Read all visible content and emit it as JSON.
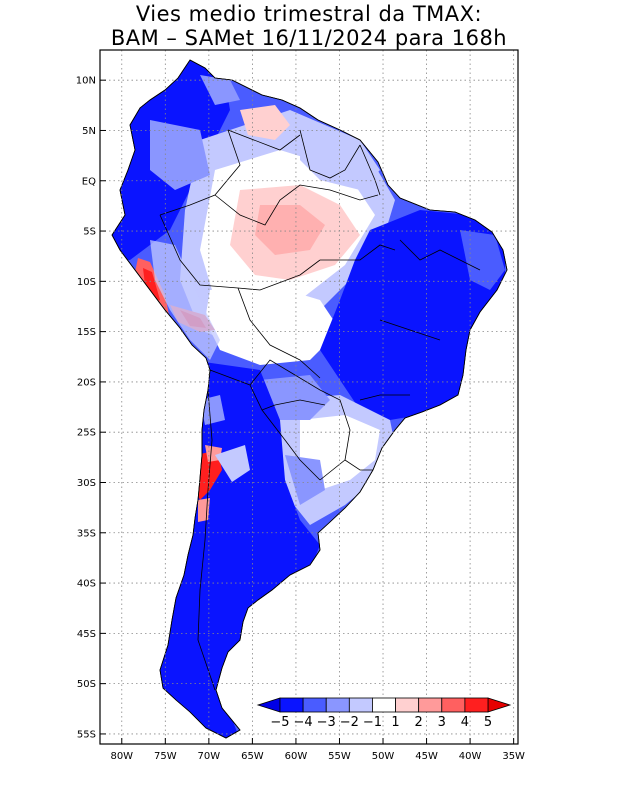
{
  "title": {
    "line1": "Vies medio trimestral da TMAX:",
    "line2": "BAM – SAMet 16/11/2024  para 168h"
  },
  "axes": {
    "lat_labels": [
      "10N",
      "5N",
      "EQ",
      "5S",
      "10S",
      "15S",
      "20S",
      "25S",
      "30S",
      "35S",
      "40S",
      "45S",
      "50S",
      "55S"
    ],
    "lon_labels": [
      "80W",
      "75W",
      "70W",
      "65W",
      "60W",
      "55W",
      "50W",
      "45W",
      "40W",
      "35W"
    ],
    "lat_range": [
      13,
      -56
    ],
    "lon_range": [
      -82.5,
      -34.5
    ],
    "grid": true
  },
  "colorbar": {
    "colors": [
      "#0a14ff",
      "#4a5cff",
      "#8a96ff",
      "#c3c9ff",
      "#ffffff",
      "#ffd0d0",
      "#ff9a9a",
      "#ff6060",
      "#ff1f1f"
    ],
    "labels": [
      "-5",
      "-4",
      "-3",
      "-2",
      "-1",
      "1",
      "2",
      "3",
      "4",
      "5"
    ],
    "extend_low_color": "#0000e6",
    "extend_high_color": "#e60000"
  },
  "palette": {
    "land_blue_strong": "#0a14ff",
    "land_blue_medium": "#4a5cff",
    "land_blue_light": "#8a96ff",
    "land_blue_pale": "#c3c9ff",
    "land_white": "#ffffff",
    "land_pink_pale": "#ffd0d0",
    "land_red": "#ff1f1f"
  }
}
